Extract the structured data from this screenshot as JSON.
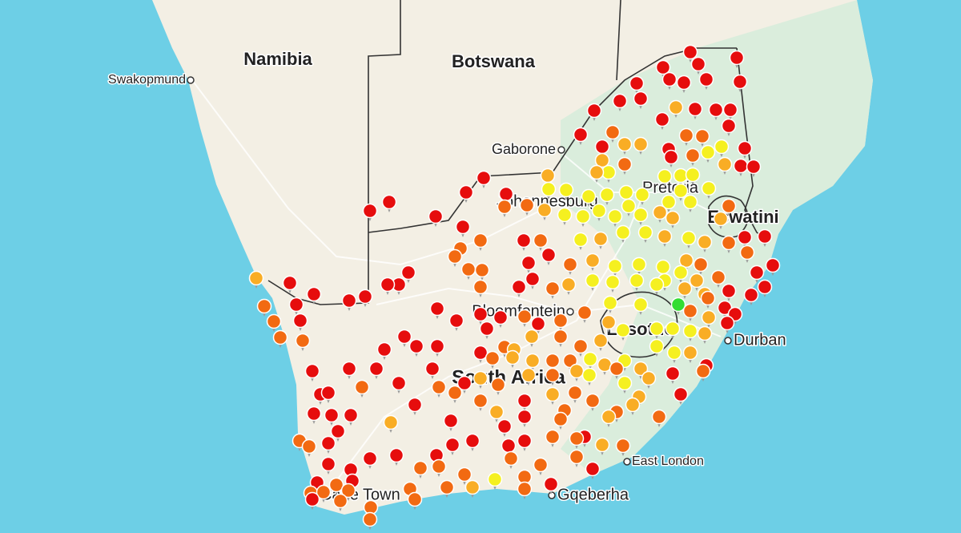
{
  "map": {
    "labels": {
      "namibia": "Namibia",
      "botswana": "Botswana",
      "swakopmund": "Swakopmund",
      "gaborone": "Gaborone",
      "johannesburg": "Johannesburg",
      "pretoria": "Pretoria",
      "eswatini": "Eswatini",
      "bloemfontein": "Bloemfontein",
      "lesotho": "Lesotho",
      "south_africa": "South Africa",
      "durban": "Durban",
      "east_london": "East London",
      "gqeberha": "Gqeberha",
      "cape_town": "Cape Town"
    }
  }
}
